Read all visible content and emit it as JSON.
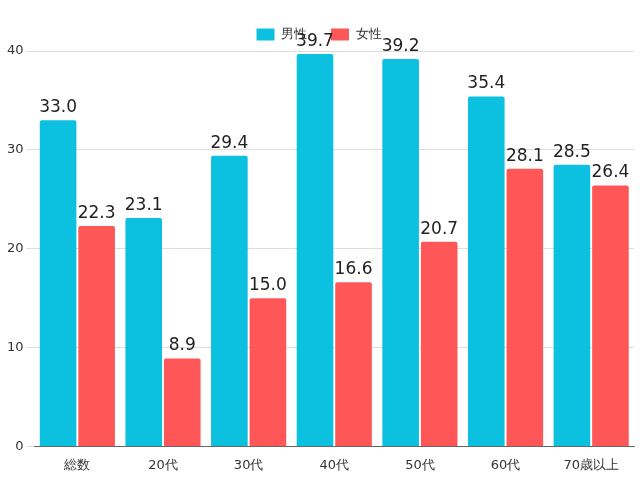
{
  "chart_data": {
    "type": "bar",
    "categories": [
      "総数",
      "20代",
      "30代",
      "40代",
      "50代",
      "60代",
      "70歳以上"
    ],
    "series": [
      {
        "name": "男性",
        "color": "#0cc0df",
        "values": [
          33.0,
          23.1,
          29.4,
          39.7,
          39.2,
          35.4,
          28.5
        ],
        "value_labels": [
          "33.0",
          "23.1",
          "29.4",
          "39.7",
          "39.2",
          "35.4",
          "28.5"
        ]
      },
      {
        "name": "女性",
        "color": "#ff5757",
        "values": [
          22.3,
          8.9,
          15.0,
          16.6,
          20.7,
          28.1,
          26.4
        ],
        "value_labels": [
          "22.3",
          "8.9",
          "15.0",
          "16.6",
          "20.7",
          "28.1",
          "26.4"
        ]
      }
    ],
    "ylim": [
      0,
      40
    ],
    "yticks": [
      0,
      10,
      20,
      30,
      40
    ],
    "grid": true,
    "legend": "top",
    "data_labels": true
  }
}
